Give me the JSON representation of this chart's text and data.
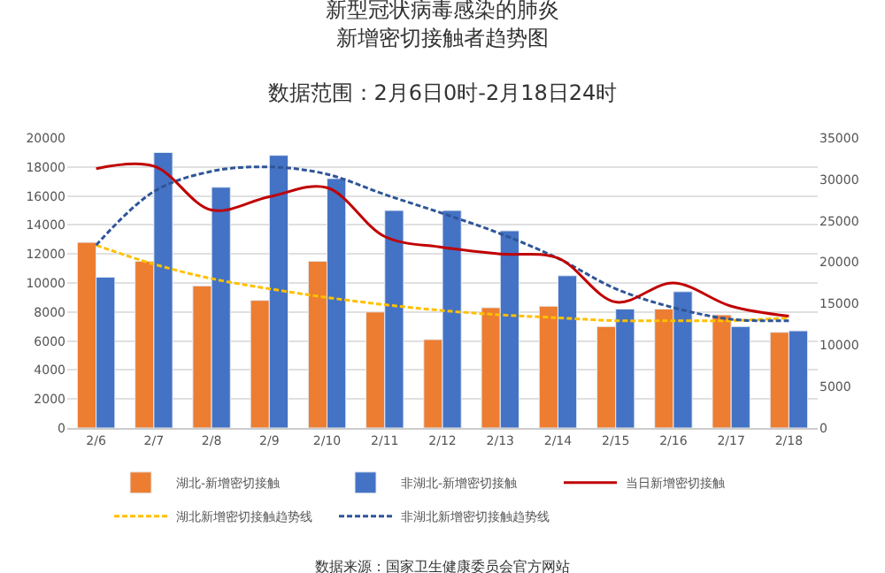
{
  "chart_data": {
    "type": "bar",
    "title": "新型冠状病毒感染的肺炎新增密切接触者趋势图",
    "subtitle": "数据范围：2月6日0时-2月18日24时",
    "categories": [
      "2/6",
      "2/7",
      "2/8",
      "2/9",
      "2/10",
      "2/11",
      "2/12",
      "2/13",
      "2/14",
      "2/15",
      "2/16",
      "2/17",
      "2/18"
    ],
    "series": [
      {
        "name": "湖北-新增密切接触",
        "color": "#ed7d31",
        "values": [
          12800,
          11500,
          9800,
          8800,
          11500,
          8000,
          6100,
          8300,
          8400,
          7000,
          8200,
          7800,
          6600
        ]
      },
      {
        "name": "非湖北-新增密切接触",
        "color": "#4472c4",
        "values": [
          10400,
          19000,
          16600,
          18800,
          17200,
          15000,
          15000,
          13600,
          10500,
          8200,
          9400,
          7000,
          6700
        ]
      },
      {
        "name": "当日新增密切接触",
        "type": "line",
        "axis": "y2",
        "color": "#c00000",
        "line_style": "solid",
        "values": [
          31300,
          31600,
          26300,
          27900,
          29000,
          23100,
          21800,
          21000,
          20500,
          15200,
          17500,
          14700,
          13500
        ]
      },
      {
        "name": "湖北新增密切接触趋势线",
        "type": "line",
        "color": "#ffc000",
        "line_style": "dashed",
        "values": [
          12600,
          11300,
          10300,
          9600,
          9000,
          8500,
          8100,
          7800,
          7600,
          7400,
          7400,
          7400,
          7600
        ]
      },
      {
        "name": "非湖北新增密切接触趋势线",
        "type": "line",
        "color": "#2f5597",
        "line_style": "dashed",
        "values": [
          12600,
          16300,
          17700,
          18000,
          17500,
          16100,
          14800,
          13400,
          11700,
          9600,
          8300,
          7500,
          7400
        ]
      }
    ],
    "ylim": [
      0,
      20000
    ],
    "yticks": [
      0,
      2000,
      4000,
      6000,
      8000,
      10000,
      12000,
      14000,
      16000,
      18000,
      20000
    ],
    "y2lim": [
      0,
      35000
    ],
    "y2ticks": [
      0,
      5000,
      10000,
      15000,
      20000,
      25000,
      30000,
      35000
    ],
    "grid": "y",
    "legend": "bottom",
    "marker": "none",
    "annotations": [
      "数据来源：国家卫生健康委员会官方网站"
    ]
  }
}
